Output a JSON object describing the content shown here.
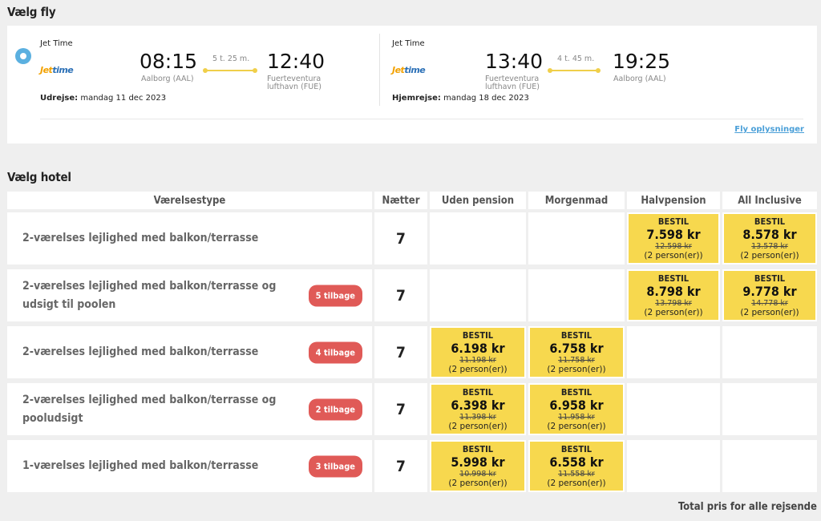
{
  "flight_section": {
    "title": "Vælg fly",
    "outbound": {
      "airline": "Jet Time",
      "logo_text_a": "Jet",
      "logo_text_b": "time",
      "dep_time": "08:15",
      "dep_place": "Aalborg (AAL)",
      "duration": "5 t. 25 m.",
      "arr_time": "12:40",
      "arr_place_1": "Fuerteventura",
      "arr_place_2": "lufthavn (FUE)",
      "date_label": "Udrejse:",
      "date": "mandag 11 dec 2023"
    },
    "inbound": {
      "airline": "Jet Time",
      "logo_text_a": "Jet",
      "logo_text_b": "time",
      "dep_time": "13:40",
      "dep_place_1": "Fuerteventura",
      "dep_place_2": "lufthavn (FUE)",
      "duration": "4 t. 45 m.",
      "arr_time": "19:25",
      "arr_place": "Aalborg (AAL)",
      "date_label": "Hjemrejse:",
      "date": "mandag 18 dec 2023"
    },
    "details_link": "Fly oplysninger"
  },
  "hotel_section": {
    "title": "Vælg hotel",
    "headers": {
      "room_type": "Værelsestype",
      "nights": "Nætter",
      "no_board": "Uden pension",
      "breakfast": "Morgenmad",
      "half_board": "Halvpension",
      "all_inclusive": "All Inclusive"
    },
    "rows": [
      {
        "name": "2-værelses lejlighed med balkon/terrasse",
        "badge": "",
        "nights": "7",
        "no_board": null,
        "breakfast": null,
        "half_board": {
          "cta": "BESTIL",
          "price": "7.598 kr",
          "old": "12.598 kr",
          "persons": "(2 person(er))"
        },
        "all_inclusive": {
          "cta": "BESTIL",
          "price": "8.578 kr",
          "old": "13.578 kr",
          "persons": "(2 person(er))"
        }
      },
      {
        "name": "2-værelses lejlighed med balkon/terrasse og udsigt til poolen",
        "badge": "5 tilbage",
        "nights": "7",
        "no_board": null,
        "breakfast": null,
        "half_board": {
          "cta": "BESTIL",
          "price": "8.798 kr",
          "old": "13.798 kr",
          "persons": "(2 person(er))"
        },
        "all_inclusive": {
          "cta": "BESTIL",
          "price": "9.778 kr",
          "old": "14.778 kr",
          "persons": "(2 person(er))"
        }
      },
      {
        "name": "2-værelses lejlighed med balkon/terrasse",
        "badge": "4 tilbage",
        "nights": "7",
        "no_board": {
          "cta": "BESTIL",
          "price": "6.198 kr",
          "old": "11.198 kr",
          "persons": "(2 person(er))"
        },
        "breakfast": {
          "cta": "BESTIL",
          "price": "6.758 kr",
          "old": "11.758 kr",
          "persons": "(2 person(er))"
        },
        "half_board": null,
        "all_inclusive": null
      },
      {
        "name": "2-værelses lejlighed med balkon/terrasse og pooludsigt",
        "badge": "2 tilbage",
        "nights": "7",
        "no_board": {
          "cta": "BESTIL",
          "price": "6.398 kr",
          "old": "11.398 kr",
          "persons": "(2 person(er))"
        },
        "breakfast": {
          "cta": "BESTIL",
          "price": "6.958 kr",
          "old": "11.958 kr",
          "persons": "(2 person(er))"
        },
        "half_board": null,
        "all_inclusive": null
      },
      {
        "name": "1-værelses lejlighed med balkon/terrasse",
        "badge": "3 tilbage",
        "nights": "7",
        "no_board": {
          "cta": "BESTIL",
          "price": "5.998 kr",
          "old": "10.998 kr",
          "persons": "(2 person(er))"
        },
        "breakfast": {
          "cta": "BESTIL",
          "price": "6.558 kr",
          "old": "11.558 kr",
          "persons": "(2 person(er))"
        },
        "half_board": null,
        "all_inclusive": null
      }
    ],
    "total_label": "Total pris for alle rejsende"
  },
  "colors": {
    "accent_yellow": "#f7d84e",
    "badge_red": "#e05a57",
    "link_blue": "#4a9fd8",
    "radio_blue": "#5bb0e0"
  }
}
